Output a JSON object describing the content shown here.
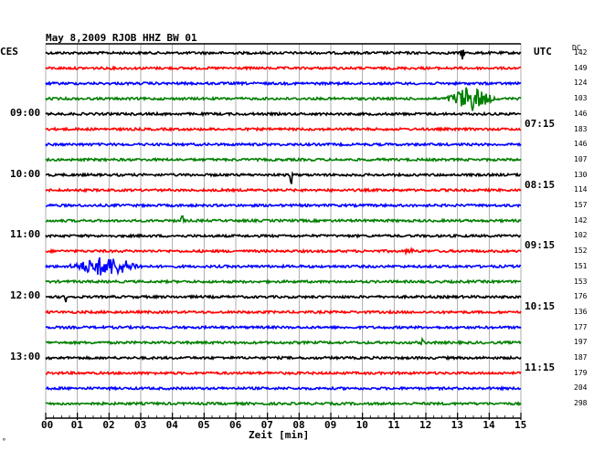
{
  "chart_data": {
    "type": "line",
    "title": "May 8,2009   RJOB HHZ BW 01",
    "left_label": "CES",
    "right_label": "UTC",
    "dc_label": "DC",
    "xlabel": "Zeit [min]",
    "x_ticks": [
      "00",
      "01",
      "02",
      "03",
      "04",
      "05",
      "06",
      "07",
      "08",
      "09",
      "10",
      "11",
      "12",
      "13",
      "14",
      "15"
    ],
    "xlim": [
      0,
      15
    ],
    "grid": true,
    "trace_colors": [
      "#000000",
      "#ff0000",
      "#0000ff",
      "#007f00"
    ],
    "left_hour_labels": [
      {
        "row": 4,
        "text": "09:00"
      },
      {
        "row": 8,
        "text": "10:00"
      },
      {
        "row": 12,
        "text": "11:00"
      },
      {
        "row": 16,
        "text": "12:00"
      },
      {
        "row": 20,
        "text": "13:00"
      }
    ],
    "right_hour_labels": [
      {
        "row": 4,
        "text": "07:15"
      },
      {
        "row": 8,
        "text": "08:15"
      },
      {
        "row": 12,
        "text": "09:15"
      },
      {
        "row": 16,
        "text": "10:15"
      },
      {
        "row": 20,
        "text": "11:15"
      }
    ],
    "dc_values": [
      "142",
      "149",
      "124",
      "103",
      "146",
      "183",
      "146",
      "107",
      "130",
      "114",
      "157",
      "142",
      "102",
      "152",
      "151",
      "153",
      "176",
      "136",
      "177",
      "197",
      "187",
      "179",
      "204",
      "298"
    ],
    "events": [
      {
        "row": 0,
        "minute": 13.15,
        "amplitude": 9,
        "width": 0.08
      },
      {
        "row": 3,
        "minute": 13.4,
        "amplitude": 14,
        "width": 0.9
      },
      {
        "row": 8,
        "minute": 7.75,
        "amplitude": 12,
        "width": 0.06
      },
      {
        "row": 11,
        "minute": 4.3,
        "amplitude": 11,
        "width": 0.06
      },
      {
        "row": 14,
        "minute": 1.9,
        "amplitude": 11,
        "width": 1.4
      },
      {
        "row": 16,
        "minute": 0.65,
        "amplitude": 8,
        "width": 0.06
      },
      {
        "row": 19,
        "minute": 11.9,
        "amplitude": 8,
        "width": 0.06
      },
      {
        "row": 13,
        "minute": 11.5,
        "amplitude": 3,
        "width": 0.4
      }
    ]
  }
}
